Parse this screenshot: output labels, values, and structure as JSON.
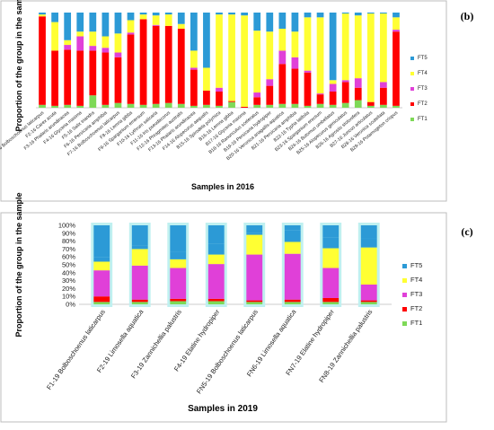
{
  "colors": {
    "FT1": "#7ed957",
    "FT2": "#a9472a",
    "FT3": "#e040d8",
    "FT4": "#ffff33",
    "FT5": "#2c9ad6",
    "FT2b": "#ff0000",
    "glow": "#bff0f0"
  },
  "chart_data": [
    {
      "type": "bar",
      "stacked": true,
      "panel_label": "(b)",
      "xlabel": "Samples in 2016",
      "ylabel": "Proportion of the group in the sample",
      "legend_position": "right",
      "legend": [
        "FT5",
        "FT4",
        "FT3",
        "FT2",
        "FT1"
      ],
      "categories": [
        "F1-16 Bolboschoenus laticarpus",
        "F2-16 Carex acuta",
        "F3-16 Phalaris arundinacea",
        "F4-16 Glyceria maxima",
        "F5-16 Salix triandra",
        "F6-16 Persicaria amphibia",
        "F7-16 Bolboschoenus laticarpus",
        "F8-16 Lemna gibba",
        "F9-16 Sparganium emersum",
        "F10-16 Lythrum salicaria",
        "F11-16 Iris pseudacorus",
        "F12-16 Phragmites australis",
        "F13-16 Phalaris arundinacea",
        "F14-16 Alopecurus aequalis",
        "B15-16 Spirodela polyrhiza",
        "B16-16 Lemna gibba",
        "B17-16 Glyceria maxima",
        "B18-16 Ranunculus sceleratus",
        "B19-16 Persicaria hydropiper",
        "B20-16 Veronica anagallis-aquatica",
        "B21-16 Persicaria amphibia",
        "B22-16 Typha latifolia",
        "B23-16 Sparganium erectum",
        "B24-16 Butomus umbellatus",
        "B25-16 Alopecurus geniculatus",
        "B26-16 Agrostis stolonifera",
        "B27-16 Juncus articulatus",
        "B28-16 Veronica scutellata",
        "B29-16 Potamogeton crispus"
      ],
      "series": [
        {
          "name": "FT1",
          "values": [
            3,
            2,
            3,
            2,
            13,
            3,
            5,
            4,
            3,
            4,
            5,
            4,
            2,
            3,
            2,
            6,
            0,
            3,
            3,
            4,
            4,
            2,
            4,
            3,
            5,
            8,
            2,
            3,
            2
          ]
        },
        {
          "name": "FT2",
          "values": [
            93,
            58,
            58,
            58,
            47,
            55,
            48,
            73,
            90,
            82,
            81,
            79,
            38,
            15,
            15,
            1,
            1,
            8,
            20,
            42,
            37,
            35,
            10,
            14,
            22,
            13,
            4,
            18,
            78
          ]
        },
        {
          "name": "FT3",
          "values": [
            0,
            0,
            5,
            15,
            5,
            5,
            5,
            2,
            0,
            1,
            0,
            0,
            2,
            0,
            4,
            0,
            0,
            5,
            7,
            14,
            12,
            2,
            1,
            8,
            2,
            10,
            0,
            6,
            2
          ]
        },
        {
          "name": "FT4",
          "values": [
            2,
            30,
            5,
            5,
            15,
            12,
            20,
            13,
            5,
            10,
            12,
            5,
            18,
            24,
            77,
            91,
            96,
            65,
            50,
            23,
            27,
            56,
            80,
            4,
            70,
            66,
            93,
            72,
            13
          ]
        },
        {
          "name": "FT5",
          "values": [
            2,
            10,
            29,
            20,
            20,
            25,
            22,
            8,
            2,
            3,
            2,
            12,
            40,
            58,
            2,
            2,
            3,
            19,
            20,
            17,
            20,
            5,
            5,
            71,
            1,
            3,
            1,
            1,
            5
          ]
        }
      ],
      "ylim": [
        0,
        100
      ]
    },
    {
      "type": "bar",
      "stacked": true,
      "panel_label": "(c)",
      "xlabel": "Samples in 2019",
      "ylabel": "Proportion of the group in the sample",
      "legend_position": "right",
      "legend": [
        "FT5",
        "FT4",
        "FT3",
        "FT2",
        "FT1"
      ],
      "y_ticks": [
        "0%",
        "10%",
        "20%",
        "30%",
        "40%",
        "50%",
        "60%",
        "70%",
        "80%",
        "90%",
        "100%"
      ],
      "categories": [
        "F1-19 Bolboschoenus laticarpus",
        "F2-19 Limosella aquatica",
        "F3-19 Zannichellia palustris",
        "F4-19 Elatine hydropiper",
        "FN5-19 Bolboschoenus laticarpus",
        "FN6-19 Limosella aquatica",
        "FN7-19 Elatine hydropiper",
        "FN8-19 Zannichellia palustris"
      ],
      "series": [
        {
          "name": "FT1",
          "values": [
            3,
            3,
            4,
            4,
            3,
            3,
            3,
            3
          ]
        },
        {
          "name": "FT2",
          "values": [
            7,
            3,
            3,
            3,
            2,
            3,
            5,
            2
          ]
        },
        {
          "name": "FT3",
          "values": [
            33,
            43,
            39,
            44,
            58,
            58,
            38,
            20
          ]
        },
        {
          "name": "FT4",
          "values": [
            11,
            21,
            11,
            12,
            25,
            15,
            25,
            47
          ]
        },
        {
          "name": "FT5",
          "values": [
            6,
            4,
            9,
            14,
            2,
            15,
            14,
            11
          ]
        },
        {
          "name": "FT5b",
          "values": [
            40,
            26,
            34,
            23,
            10,
            6,
            15,
            17
          ]
        }
      ],
      "ylim": [
        0,
        100
      ]
    }
  ]
}
